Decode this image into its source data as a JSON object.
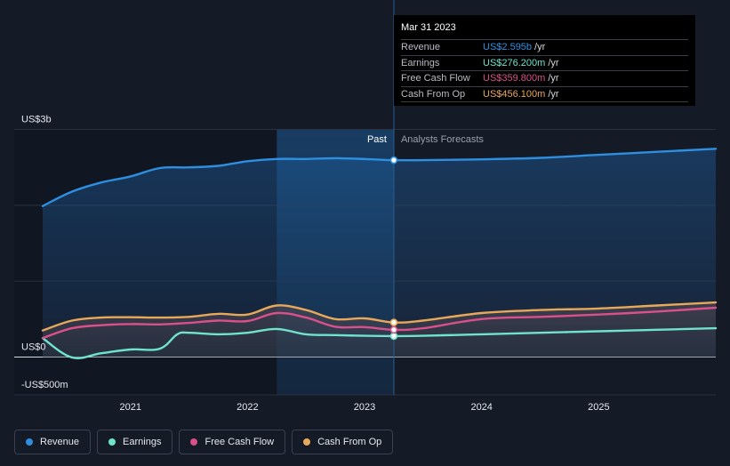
{
  "chart_data": {
    "type": "line",
    "currency_unit": "US$",
    "y_axis": {
      "min": -500,
      "max": 3000,
      "unit": "m"
    },
    "y_tick_labels": [
      {
        "value": 3000,
        "label": "US$3b"
      },
      {
        "value": 0,
        "label": "US$0"
      },
      {
        "value": -500,
        "label": "-US$500m"
      }
    ],
    "x_axis": {
      "min": 2020.25,
      "max": 2026.0
    },
    "x_ticks": [
      {
        "value": 2021.0,
        "label": "2021"
      },
      {
        "value": 2022.0,
        "label": "2022"
      },
      {
        "value": 2023.0,
        "label": "2023"
      },
      {
        "value": 2024.0,
        "label": "2024"
      },
      {
        "value": 2025.0,
        "label": "2025"
      }
    ],
    "past_label": "Past",
    "forecast_label": "Analysts Forecasts",
    "past_shade_start": 2022.25,
    "divider_x": 2023.25,
    "colors": {
      "revenue": "#2e8fe0",
      "earnings": "#6fe3cc",
      "free_cash_flow": "#d9508a",
      "cash_from_op": "#e8a85a"
    },
    "series": [
      {
        "key": "revenue",
        "name": "Revenue",
        "points": [
          [
            2020.25,
            1990
          ],
          [
            2020.5,
            2180
          ],
          [
            2020.75,
            2300
          ],
          [
            2021.0,
            2380
          ],
          [
            2021.25,
            2490
          ],
          [
            2021.5,
            2500
          ],
          [
            2021.75,
            2520
          ],
          [
            2022.0,
            2580
          ],
          [
            2022.25,
            2610
          ],
          [
            2022.5,
            2610
          ],
          [
            2022.75,
            2620
          ],
          [
            2023.0,
            2610
          ],
          [
            2023.25,
            2595
          ],
          [
            2023.5,
            2595
          ],
          [
            2024.0,
            2605
          ],
          [
            2024.5,
            2625
          ],
          [
            2025.0,
            2665
          ],
          [
            2025.5,
            2705
          ],
          [
            2026.0,
            2745
          ]
        ]
      },
      {
        "key": "cash_from_op",
        "name": "Cash From Op",
        "points": [
          [
            2020.25,
            350
          ],
          [
            2020.5,
            480
          ],
          [
            2020.75,
            520
          ],
          [
            2021.0,
            525
          ],
          [
            2021.25,
            520
          ],
          [
            2021.5,
            530
          ],
          [
            2021.75,
            570
          ],
          [
            2022.0,
            560
          ],
          [
            2022.25,
            680
          ],
          [
            2022.5,
            620
          ],
          [
            2022.75,
            500
          ],
          [
            2023.0,
            510
          ],
          [
            2023.25,
            456
          ],
          [
            2023.5,
            480
          ],
          [
            2024.0,
            580
          ],
          [
            2024.5,
            620
          ],
          [
            2025.0,
            640
          ],
          [
            2025.5,
            680
          ],
          [
            2026.0,
            720
          ]
        ]
      },
      {
        "key": "free_cash_flow",
        "name": "Free Cash Flow",
        "points": [
          [
            2020.25,
            250
          ],
          [
            2020.5,
            380
          ],
          [
            2020.75,
            420
          ],
          [
            2021.0,
            435
          ],
          [
            2021.25,
            430
          ],
          [
            2021.5,
            450
          ],
          [
            2021.75,
            480
          ],
          [
            2022.0,
            475
          ],
          [
            2022.25,
            580
          ],
          [
            2022.5,
            520
          ],
          [
            2022.75,
            400
          ],
          [
            2023.0,
            395
          ],
          [
            2023.25,
            359.8
          ],
          [
            2023.5,
            380
          ],
          [
            2024.0,
            500
          ],
          [
            2024.5,
            530
          ],
          [
            2025.0,
            560
          ],
          [
            2025.5,
            600
          ],
          [
            2026.0,
            650
          ]
        ]
      },
      {
        "key": "earnings",
        "name": "Earnings",
        "points": [
          [
            2020.25,
            250
          ],
          [
            2020.5,
            -5
          ],
          [
            2020.75,
            50
          ],
          [
            2021.0,
            100
          ],
          [
            2021.25,
            110
          ],
          [
            2021.4,
            300
          ],
          [
            2021.5,
            320
          ],
          [
            2021.75,
            300
          ],
          [
            2022.0,
            320
          ],
          [
            2022.25,
            370
          ],
          [
            2022.5,
            300
          ],
          [
            2022.75,
            290
          ],
          [
            2023.0,
            280
          ],
          [
            2023.25,
            276.2
          ],
          [
            2023.5,
            280
          ],
          [
            2024.0,
            300
          ],
          [
            2024.5,
            320
          ],
          [
            2025.0,
            340
          ],
          [
            2025.5,
            360
          ],
          [
            2026.0,
            380
          ]
        ]
      }
    ],
    "tooltip": {
      "date": "Mar 31 2023",
      "rows": [
        {
          "key": "revenue",
          "label": "Revenue",
          "value": "US$2.595b",
          "unit": "/yr"
        },
        {
          "key": "earnings",
          "label": "Earnings",
          "value": "US$276.200m",
          "unit": "/yr"
        },
        {
          "key": "free_cash_flow",
          "label": "Free Cash Flow",
          "value": "US$359.800m",
          "unit": "/yr"
        },
        {
          "key": "cash_from_op",
          "label": "Cash From Op",
          "value": "US$456.100m",
          "unit": "/yr"
        }
      ]
    },
    "markers_at": 2023.25,
    "marker_values": {
      "revenue": 2595,
      "earnings": 276.2,
      "free_cash_flow": 359.8,
      "cash_from_op": 456.1
    }
  },
  "legend": [
    {
      "key": "revenue",
      "label": "Revenue"
    },
    {
      "key": "earnings",
      "label": "Earnings"
    },
    {
      "key": "free_cash_flow",
      "label": "Free Cash Flow"
    },
    {
      "key": "cash_from_op",
      "label": "Cash From Op"
    }
  ]
}
